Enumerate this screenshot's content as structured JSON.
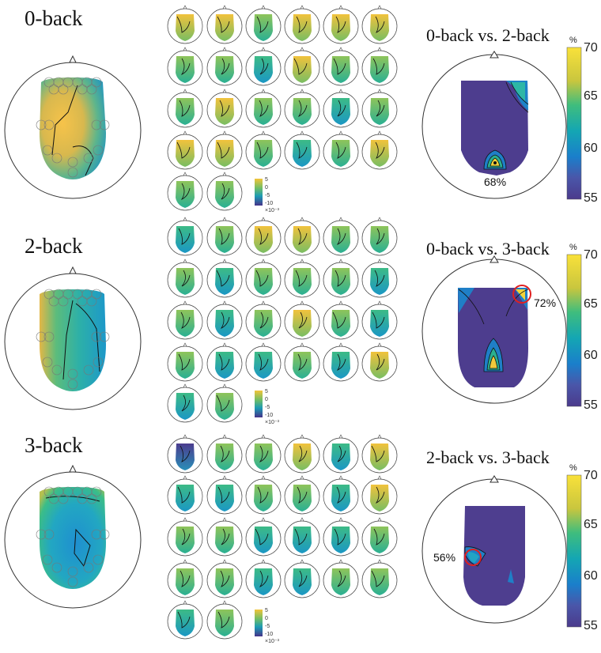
{
  "conditions": [
    {
      "title": "0-back",
      "small_cb_ticks": [
        "5",
        "0",
        "-5",
        "-10"
      ],
      "small_cb_exp": "×10⁻³"
    },
    {
      "title": "2-back",
      "small_cb_ticks": [
        "5",
        "0",
        "-5",
        "-10"
      ],
      "small_cb_exp": "×10⁻³"
    },
    {
      "title": "3-back",
      "small_cb_ticks": [
        "5",
        "0",
        "-5",
        "-10"
      ],
      "small_cb_exp": "×10⁻³"
    }
  ],
  "comparisons": [
    {
      "title": "0-back vs. 2-back",
      "annotation": "68%"
    },
    {
      "title": "0-back vs. 3-back",
      "annotation": "72%"
    },
    {
      "title": "2-back vs. 3-back",
      "annotation": "56%"
    }
  ],
  "colorbar": {
    "unit": "%",
    "ticks": [
      "70",
      "65",
      "60",
      "55"
    ]
  },
  "colors": {
    "yellow": "#f9e13a",
    "orange": "#e8b24a",
    "green": "#2db88e",
    "teal": "#1ea7b6",
    "blue": "#1f7fc7",
    "purple": "#4c3f8e"
  }
}
